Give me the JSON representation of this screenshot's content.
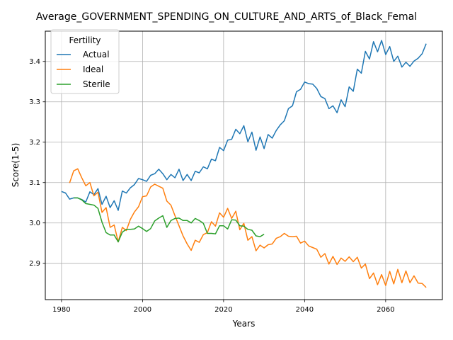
{
  "chart_data": {
    "type": "line",
    "title": "Average_GOVERNMENT_SPENDING_ON_CULTURE_AND_ARTS_of_Black_Femal",
    "xlabel": "Years",
    "ylabel": "Score(1-5)",
    "xlim": [
      1976,
      2074
    ],
    "ylim": [
      2.81,
      3.475
    ],
    "xticks": [
      1980,
      2000,
      2020,
      2040,
      2060
    ],
    "yticks": [
      2.9,
      3.0,
      3.1,
      3.2,
      3.3,
      3.4
    ],
    "ytick_labels": [
      "2.9",
      "3.0",
      "3.1",
      "3.2",
      "3.3",
      "3.4"
    ],
    "grid": true,
    "legend": {
      "title": "Fertility",
      "placement": "top-left"
    },
    "series": [
      {
        "name": "Actual",
        "color": "#1f77b4",
        "x": [
          1980,
          1981,
          1982,
          1983,
          1984,
          1985,
          1986,
          1987,
          1988,
          1989,
          1990,
          1991,
          1992,
          1993,
          1994,
          1995,
          1996,
          1997,
          1998,
          1999,
          2000,
          2001,
          2002,
          2003,
          2004,
          2005,
          2006,
          2007,
          2008,
          2009,
          2010,
          2011,
          2012,
          2013,
          2014,
          2015,
          2016,
          2017,
          2018,
          2019,
          2020,
          2021,
          2022,
          2023,
          2024,
          2025,
          2026,
          2027,
          2028,
          2029,
          2030,
          2031,
          2032,
          2033,
          2034,
          2035,
          2036,
          2037,
          2038,
          2039,
          2040,
          2041,
          2042,
          2043,
          2044,
          2045,
          2046,
          2047,
          2048,
          2049,
          2050,
          2051,
          2052,
          2053,
          2054,
          2055,
          2056,
          2057,
          2058,
          2059,
          2060,
          2061,
          2062,
          2063,
          2064,
          2065,
          2066,
          2067,
          2068,
          2069,
          2070
        ],
        "values": [
          3.078,
          3.074,
          3.059,
          3.062,
          3.062,
          3.058,
          3.052,
          3.077,
          3.07,
          3.085,
          3.046,
          3.066,
          3.038,
          3.055,
          3.031,
          3.079,
          3.074,
          3.087,
          3.095,
          3.11,
          3.107,
          3.103,
          3.118,
          3.122,
          3.133,
          3.122,
          3.107,
          3.12,
          3.112,
          3.133,
          3.105,
          3.12,
          3.105,
          3.128,
          3.124,
          3.139,
          3.134,
          3.158,
          3.154,
          3.187,
          3.179,
          3.205,
          3.207,
          3.232,
          3.221,
          3.241,
          3.201,
          3.225,
          3.18,
          3.213,
          3.184,
          3.219,
          3.21,
          3.229,
          3.243,
          3.253,
          3.283,
          3.29,
          3.325,
          3.331,
          3.349,
          3.345,
          3.344,
          3.333,
          3.313,
          3.308,
          3.283,
          3.29,
          3.273,
          3.305,
          3.288,
          3.337,
          3.326,
          3.381,
          3.371,
          3.425,
          3.406,
          3.449,
          3.424,
          3.452,
          3.417,
          3.437,
          3.4,
          3.413,
          3.386,
          3.398,
          3.388,
          3.401,
          3.408,
          3.419,
          3.444
        ]
      },
      {
        "name": "Ideal",
        "color": "#ff7f0e",
        "x": [
          1982,
          1983,
          1984,
          1985,
          1986,
          1987,
          1988,
          1989,
          1990,
          1991,
          1992,
          1993,
          1994,
          1995,
          1996,
          1997,
          1998,
          1999,
          2000,
          2001,
          2002,
          2003,
          2004,
          2005,
          2006,
          2007,
          2008,
          2009,
          2010,
          2011,
          2012,
          2013,
          2014,
          2015,
          2016,
          2017,
          2018,
          2019,
          2020,
          2021,
          2022,
          2023,
          2024,
          2025,
          2026,
          2027,
          2028,
          2029,
          2030,
          2031,
          2032,
          2033,
          2034,
          2035,
          2036,
          2037,
          2038,
          2039,
          2040,
          2041,
          2042,
          2043,
          2044,
          2045,
          2046,
          2047,
          2048,
          2049,
          2050,
          2051,
          2052,
          2053,
          2054,
          2055,
          2056,
          2057,
          2058,
          2059,
          2060,
          2061,
          2062,
          2063,
          2064,
          2065,
          2066,
          2067,
          2068,
          2069,
          2070
        ],
        "values": [
          3.099,
          3.129,
          3.134,
          3.112,
          3.092,
          3.1,
          3.067,
          3.076,
          3.026,
          3.038,
          2.989,
          2.995,
          2.953,
          2.989,
          2.981,
          3.009,
          3.027,
          3.04,
          3.065,
          3.067,
          3.089,
          3.096,
          3.091,
          3.086,
          3.054,
          3.044,
          3.018,
          2.993,
          2.968,
          2.948,
          2.932,
          2.957,
          2.952,
          2.971,
          2.976,
          3.003,
          2.992,
          3.025,
          3.014,
          3.036,
          3.011,
          3.029,
          2.983,
          2.999,
          2.957,
          2.966,
          2.931,
          2.945,
          2.938,
          2.946,
          2.948,
          2.962,
          2.966,
          2.974,
          2.967,
          2.966,
          2.967,
          2.95,
          2.955,
          2.943,
          2.939,
          2.935,
          2.915,
          2.924,
          2.898,
          2.917,
          2.897,
          2.913,
          2.905,
          2.916,
          2.904,
          2.915,
          2.888,
          2.898,
          2.862,
          2.876,
          2.847,
          2.872,
          2.845,
          2.88,
          2.849,
          2.885,
          2.852,
          2.881,
          2.852,
          2.869,
          2.851,
          2.85,
          2.84
        ]
      },
      {
        "name": "Sterile",
        "color": "#2ca02c",
        "x": [
          1983,
          1984,
          1985,
          1986,
          1987,
          1988,
          1989,
          1990,
          1991,
          1992,
          1993,
          1994,
          1995,
          1996,
          1997,
          1998,
          1999,
          2000,
          2001,
          2002,
          2003,
          2004,
          2005,
          2006,
          2007,
          2008,
          2009,
          2010,
          2011,
          2012,
          2013,
          2014,
          2015,
          2016,
          2017,
          2018,
          2019,
          2020,
          2021,
          2022,
          2023,
          2024,
          2025,
          2026,
          2027,
          2028,
          2029,
          2030
        ],
        "values": [
          3.062,
          3.062,
          3.057,
          3.048,
          3.046,
          3.044,
          3.036,
          3.002,
          2.976,
          2.97,
          2.97,
          2.953,
          2.977,
          2.984,
          2.984,
          2.985,
          2.992,
          2.986,
          2.979,
          2.986,
          3.005,
          3.012,
          3.018,
          2.989,
          3.006,
          3.011,
          3.012,
          3.006,
          3.006,
          3.0,
          3.011,
          3.006,
          2.999,
          2.974,
          2.974,
          2.973,
          2.993,
          2.993,
          2.985,
          3.008,
          3.007,
          2.993,
          2.992,
          2.984,
          2.982,
          2.968,
          2.966,
          2.972
        ]
      }
    ]
  }
}
